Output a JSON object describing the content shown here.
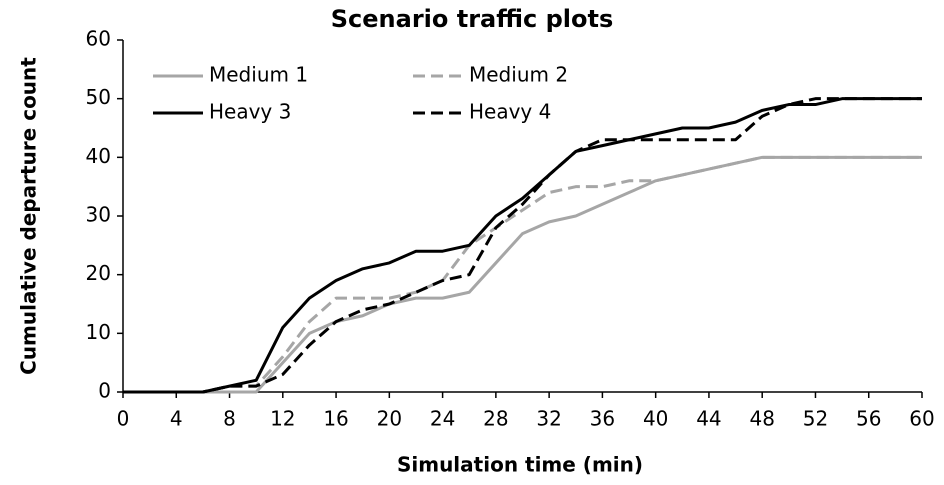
{
  "chart_data": {
    "type": "line",
    "title": "Scenario traffic plots",
    "x_label": "Simulation time (min)",
    "y_label": "Cumulative departure count",
    "x": [
      0,
      2,
      4,
      6,
      8,
      10,
      12,
      14,
      16,
      18,
      20,
      22,
      24,
      26,
      28,
      30,
      32,
      34,
      36,
      38,
      40,
      42,
      44,
      46,
      48,
      50,
      52,
      54,
      56,
      58,
      60
    ],
    "series": [
      {
        "name": "Medium 1",
        "color": "#a6a6a6",
        "line_style": "solid",
        "values": [
          0,
          0,
          0,
          0,
          0,
          0,
          5,
          10,
          12,
          13,
          15,
          16,
          16,
          17,
          22,
          27,
          29,
          30,
          32,
          34,
          36,
          37,
          38,
          39,
          40,
          40,
          40,
          40,
          40,
          40,
          40
        ]
      },
      {
        "name": "Medium 2",
        "color": "#a6a6a6",
        "line_style": "dashed",
        "values": [
          0,
          0,
          0,
          0,
          1,
          1,
          6,
          12,
          16,
          16,
          16,
          17,
          19,
          25,
          28,
          31,
          34,
          35,
          35,
          36,
          36,
          37,
          38,
          39,
          40,
          40,
          40,
          40,
          40,
          40,
          40
        ]
      },
      {
        "name": "Heavy 3",
        "color": "#000000",
        "line_style": "solid",
        "values": [
          0,
          0,
          0,
          0,
          1,
          2,
          11,
          16,
          19,
          21,
          22,
          24,
          24,
          25,
          30,
          33,
          37,
          41,
          42,
          43,
          44,
          45,
          45,
          46,
          48,
          49,
          49,
          50,
          50,
          50,
          50
        ]
      },
      {
        "name": "Heavy 4",
        "color": "#000000",
        "line_style": "dashed",
        "values": [
          0,
          0,
          0,
          0,
          1,
          1,
          3,
          8,
          12,
          14,
          15,
          17,
          19,
          20,
          28,
          32,
          37,
          41,
          43,
          43,
          43,
          43,
          43,
          43,
          47,
          49,
          50,
          50,
          50,
          50,
          50
        ]
      }
    ],
    "xlim": [
      0,
      60
    ],
    "xticks": [
      0,
      4,
      8,
      12,
      16,
      20,
      24,
      28,
      32,
      36,
      40,
      44,
      48,
      52,
      56,
      60
    ],
    "ylim": [
      0,
      60
    ],
    "yticks": [
      0,
      10,
      20,
      30,
      40,
      50,
      60
    ],
    "grid": false,
    "legend": "upper left"
  }
}
